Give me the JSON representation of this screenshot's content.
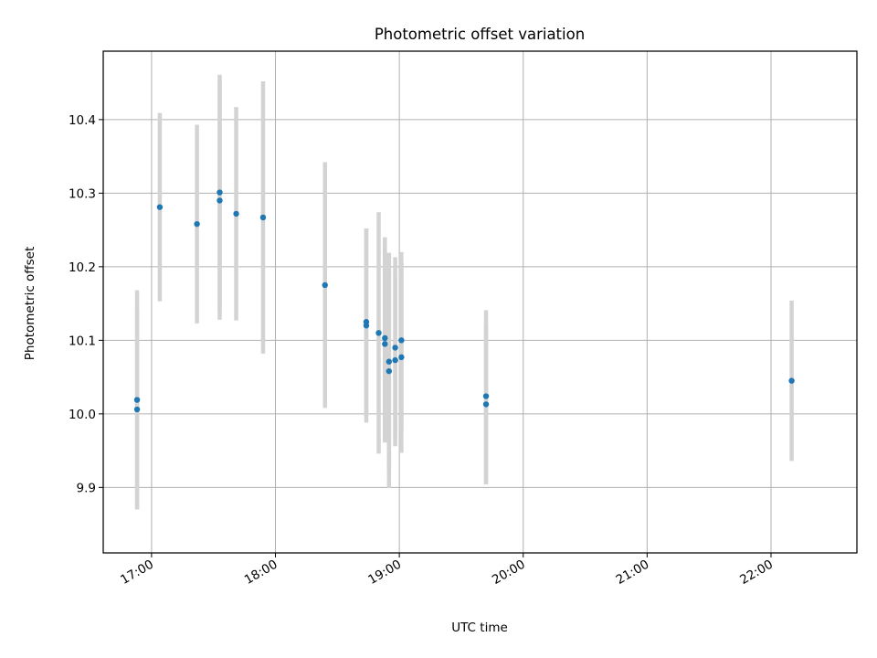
{
  "chart_data": {
    "type": "scatter",
    "title": "Photometric offset variation",
    "xlabel": "UTC time",
    "ylabel": "Photometric offset",
    "x_tick_labels": [
      "17:00",
      "18:00",
      "19:00",
      "20:00",
      "21:00",
      "22:00"
    ],
    "y_tick_labels": [
      "9.9",
      "10.0",
      "10.1",
      "10.2",
      "10.3",
      "10.4"
    ],
    "x_ticks_minutes": [
      1020,
      1080,
      1140,
      1200,
      1260,
      1320
    ],
    "y_ticks": [
      9.9,
      10.0,
      10.1,
      10.2,
      10.3,
      10.4
    ],
    "xlim_minutes": [
      996.6,
      1361.6
    ],
    "ylim": [
      9.811,
      10.493
    ],
    "grid": true,
    "marker_color": "#1f77b4",
    "errorbar_color": "#d3d3d3",
    "series": [
      {
        "points": [
          {
            "t": "16:53",
            "y": 10.006,
            "err": 0.135
          },
          {
            "t": "16:53",
            "y": 10.019,
            "err": 0.149
          },
          {
            "t": "17:04",
            "y": 10.281,
            "err": 0.128
          },
          {
            "t": "17:22",
            "y": 10.258,
            "err": 0.135
          },
          {
            "t": "17:33",
            "y": 10.301,
            "err": 0.16
          },
          {
            "t": "17:33",
            "y": 10.29,
            "err": 0.162
          },
          {
            "t": "17:41",
            "y": 10.272,
            "err": 0.145
          },
          {
            "t": "17:54",
            "y": 10.267,
            "err": 0.185
          },
          {
            "t": "18:24",
            "y": 10.175,
            "err": 0.167
          },
          {
            "t": "18:44",
            "y": 10.125,
            "err": 0.127
          },
          {
            "t": "18:44",
            "y": 10.12,
            "err": 0.132
          },
          {
            "t": "18:50",
            "y": 10.11,
            "err": 0.164
          },
          {
            "t": "18:53",
            "y": 10.103,
            "err": 0.137
          },
          {
            "t": "18:53",
            "y": 10.095,
            "err": 0.134
          },
          {
            "t": "18:55",
            "y": 10.071,
            "err": 0.148
          },
          {
            "t": "18:55",
            "y": 10.058,
            "err": 0.159
          },
          {
            "t": "18:58",
            "y": 10.073,
            "err": 0.117
          },
          {
            "t": "18:58",
            "y": 10.09,
            "err": 0.123
          },
          {
            "t": "19:01",
            "y": 10.1,
            "err": 0.12
          },
          {
            "t": "19:01",
            "y": 10.077,
            "err": 0.13
          },
          {
            "t": "19:42",
            "y": 10.024,
            "err": 0.117
          },
          {
            "t": "19:42",
            "y": 10.013,
            "err": 0.109
          },
          {
            "t": "22:10",
            "y": 10.045,
            "err": 0.109
          }
        ]
      }
    ]
  }
}
